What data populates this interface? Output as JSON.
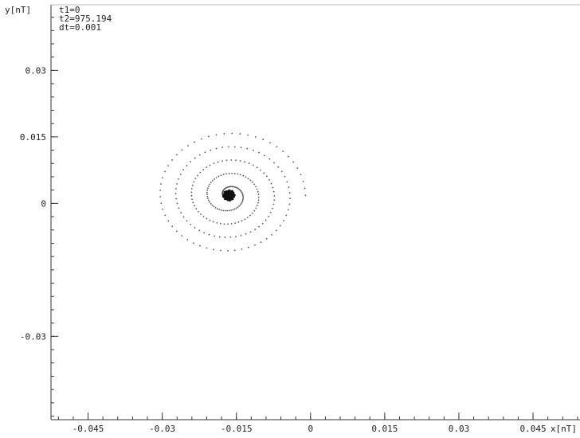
{
  "chart_data": {
    "type": "scatter",
    "title": "",
    "xlabel": "x[nT]",
    "ylabel": "y[nT]",
    "xlim": [
      -0.0525,
      0.0545
    ],
    "ylim": [
      -0.0488,
      0.0448
    ],
    "x_ticks": [
      -0.045,
      -0.03,
      -0.015,
      0,
      0.015,
      0.03,
      0.045
    ],
    "x_tick_labels": [
      "-0.045",
      "-0.03",
      "-0.015",
      "0",
      "0.015",
      "0.03",
      "0.045"
    ],
    "y_ticks": [
      0.03,
      0.015,
      0,
      -0.03
    ],
    "y_tick_labels": [
      "0.03",
      "0.015",
      "0",
      "-0.03"
    ],
    "grid": false,
    "annotations": [
      "t1=0",
      "t2=975.194",
      "dt=0.001"
    ],
    "spiral": {
      "center": [
        -0.0165,
        0.0018
      ],
      "max_radius": 0.0155,
      "turns": 4.5,
      "point_count": 260
    },
    "cluster": {
      "center": [
        -0.0165,
        0.0018
      ],
      "radius": 0.0012,
      "point_count": 60
    }
  }
}
